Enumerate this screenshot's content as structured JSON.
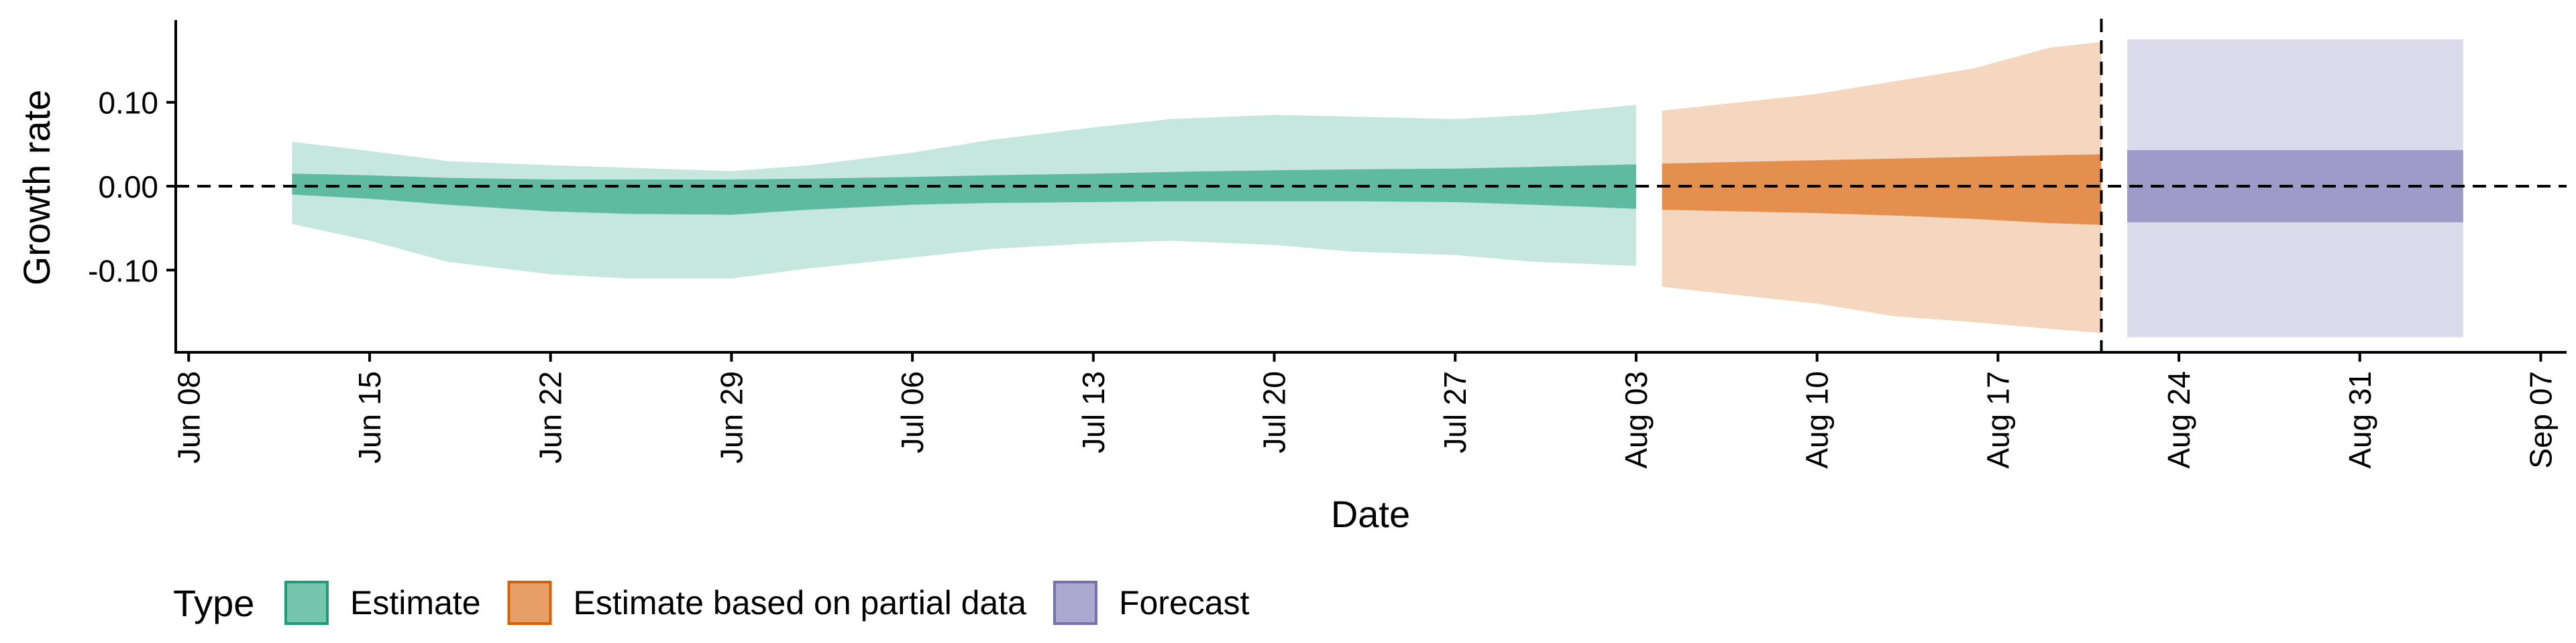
{
  "chart_data": {
    "type": "area",
    "ylabel": "Growth rate",
    "xlabel": "Date",
    "ylim": [
      -0.198,
      0.198
    ],
    "xlim": [
      "2020-06-07T12:00",
      "2020-09-08T00:00"
    ],
    "yticks": [
      0.1,
      0.0,
      -0.1
    ],
    "ytick_labels": [
      "0.10",
      "0.00",
      "-0.10"
    ],
    "xticks": [
      "2020-06-08",
      "2020-06-15",
      "2020-06-22",
      "2020-06-29",
      "2020-07-06",
      "2020-07-13",
      "2020-07-20",
      "2020-07-27",
      "2020-08-03",
      "2020-08-10",
      "2020-08-17",
      "2020-08-24",
      "2020-08-31",
      "2020-09-07"
    ],
    "xtick_labels": [
      "Jun 08",
      "Jun 15",
      "Jun 22",
      "Jun 29",
      "Jul 06",
      "Jul 13",
      "Jul 20",
      "Jul 27",
      "Aug 03",
      "Aug 10",
      "Aug 17",
      "Aug 24",
      "Aug 31",
      "Sep 07"
    ],
    "reference_lines": {
      "horizontal_y": 0.0,
      "vertical_date": "2020-08-21"
    },
    "legend": {
      "title": "Type",
      "placement": "bottom-left",
      "items": [
        {
          "label": "Estimate",
          "color": "#1b9e77"
        },
        {
          "label": "Estimate based on partial data",
          "color": "#d95f02"
        },
        {
          "label": "Forecast",
          "color": "#7570b3"
        }
      ]
    },
    "series": [
      {
        "name": "Estimate",
        "color": "#1b9e77",
        "x": [
          "2020-06-12",
          "2020-06-15",
          "2020-06-18",
          "2020-06-22",
          "2020-06-25",
          "2020-06-29",
          "2020-07-02",
          "2020-07-06",
          "2020-07-09",
          "2020-07-13",
          "2020-07-16",
          "2020-07-20",
          "2020-07-23",
          "2020-07-27",
          "2020-07-30",
          "2020-08-03"
        ],
        "upper90": [
          0.053,
          0.042,
          0.03,
          0.025,
          0.022,
          0.018,
          0.025,
          0.04,
          0.055,
          0.07,
          0.08,
          0.085,
          0.083,
          0.08,
          0.085,
          0.097
        ],
        "upper50": [
          0.015,
          0.013,
          0.01,
          0.008,
          0.008,
          0.008,
          0.009,
          0.011,
          0.013,
          0.015,
          0.017,
          0.019,
          0.02,
          0.021,
          0.023,
          0.026
        ],
        "lower50": [
          -0.01,
          -0.015,
          -0.022,
          -0.03,
          -0.033,
          -0.034,
          -0.028,
          -0.022,
          -0.02,
          -0.019,
          -0.018,
          -0.018,
          -0.018,
          -0.019,
          -0.022,
          -0.027
        ],
        "lower90": [
          -0.045,
          -0.065,
          -0.09,
          -0.105,
          -0.11,
          -0.11,
          -0.098,
          -0.085,
          -0.075,
          -0.068,
          -0.065,
          -0.07,
          -0.078,
          -0.082,
          -0.09,
          -0.095
        ]
      },
      {
        "name": "Estimate based on partial data",
        "color": "#d95f02",
        "x": [
          "2020-08-04",
          "2020-08-07",
          "2020-08-10",
          "2020-08-13",
          "2020-08-16",
          "2020-08-19",
          "2020-08-21"
        ],
        "upper90": [
          0.09,
          0.1,
          0.11,
          0.125,
          0.14,
          0.165,
          0.172
        ],
        "upper50": [
          0.027,
          0.029,
          0.031,
          0.033,
          0.035,
          0.037,
          0.038
        ],
        "lower50": [
          -0.028,
          -0.03,
          -0.032,
          -0.035,
          -0.039,
          -0.044,
          -0.046
        ],
        "lower90": [
          -0.12,
          -0.13,
          -0.14,
          -0.155,
          -0.162,
          -0.17,
          -0.175
        ]
      },
      {
        "name": "Forecast",
        "color": "#7570b3",
        "x": [
          "2020-08-22",
          "2020-09-04"
        ],
        "upper90": [
          0.175,
          0.175
        ],
        "upper50": [
          0.043,
          0.043
        ],
        "lower50": [
          -0.043,
          -0.043
        ],
        "lower90": [
          -0.18,
          -0.18
        ]
      }
    ]
  }
}
